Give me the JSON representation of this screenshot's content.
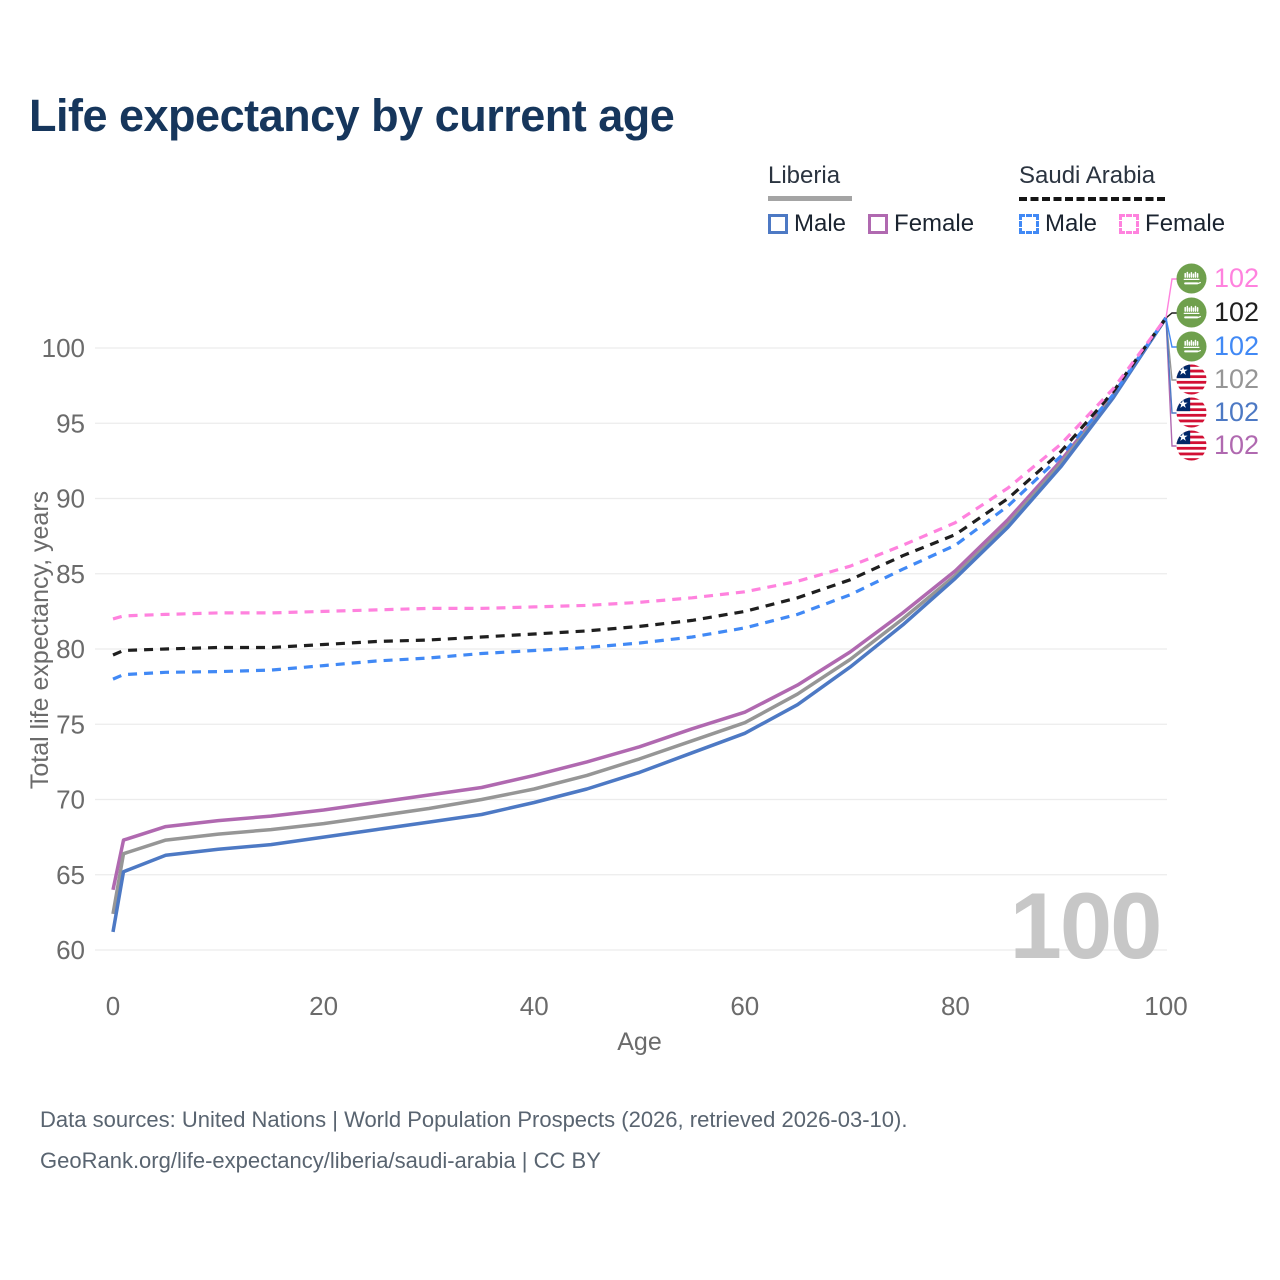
{
  "title": "Life expectancy by current age",
  "watermark": "100",
  "legend": {
    "groups": [
      {
        "name": "Liberia",
        "line_style": "solid",
        "underline_color": "#a4a4a4",
        "items": [
          {
            "label": "Male",
            "color": "#4d79c4"
          },
          {
            "label": "Female",
            "color": "#b069b0"
          }
        ]
      },
      {
        "name": "Saudi Arabia",
        "line_style": "dashed",
        "underline_color": "#151515",
        "items": [
          {
            "label": "Male",
            "color": "#4189f5"
          },
          {
            "label": "Female",
            "color": "#ff82de"
          }
        ]
      }
    ]
  },
  "footer": {
    "line1": "Data sources: United Nations | World Population Prospects (2026, retrieved 2026-03-10).",
    "line2": "GeoRank.org/life-expectancy/liberia/saudi-arabia | CC BY"
  },
  "chart_data": {
    "type": "line",
    "title": "Life expectancy by current age",
    "xlabel": "Age",
    "ylabel": "Total life expectancy, years",
    "xlim": [
      0,
      100
    ],
    "ylim": [
      58,
      103
    ],
    "x_ticks": [
      0,
      20,
      40,
      60,
      80,
      100
    ],
    "y_ticks": [
      60,
      65,
      70,
      75,
      80,
      85,
      90,
      95,
      100
    ],
    "grid": true,
    "legend_position": "top-right",
    "x": [
      0,
      1,
      5,
      10,
      15,
      20,
      25,
      30,
      35,
      40,
      45,
      50,
      55,
      60,
      65,
      70,
      75,
      80,
      85,
      90,
      95,
      100
    ],
    "series": [
      {
        "name": "Liberia Female",
        "country": "liberia",
        "sex": "female",
        "color": "#b069b0",
        "dash": false,
        "end_label": "102",
        "label_row": 5,
        "values": [
          64.0,
          67.3,
          68.2,
          68.6,
          68.9,
          69.3,
          69.8,
          70.3,
          70.8,
          71.6,
          72.5,
          73.5,
          74.7,
          75.8,
          77.6,
          79.8,
          82.4,
          85.2,
          88.6,
          92.5,
          96.9,
          102
        ]
      },
      {
        "name": "Liberia Both sexes",
        "country": "liberia",
        "sex": "total",
        "color": "#969696",
        "dash": false,
        "end_label": "102",
        "label_row": 3,
        "values": [
          62.4,
          66.4,
          67.3,
          67.7,
          68.0,
          68.4,
          68.9,
          69.4,
          70.0,
          70.7,
          71.6,
          72.7,
          73.9,
          75.1,
          77.0,
          79.3,
          82.0,
          84.9,
          88.3,
          92.3,
          96.8,
          102
        ]
      },
      {
        "name": "Liberia Male",
        "country": "liberia",
        "sex": "male",
        "color": "#4d79c4",
        "dash": false,
        "end_label": "102",
        "label_row": 4,
        "values": [
          61.2,
          65.2,
          66.3,
          66.7,
          67.0,
          67.5,
          68.0,
          68.5,
          69.0,
          69.8,
          70.7,
          71.8,
          73.1,
          74.4,
          76.3,
          78.8,
          81.6,
          84.7,
          88.1,
          92.1,
          96.7,
          102
        ]
      },
      {
        "name": "Saudi Arabia Male",
        "country": "saudi-arabia",
        "sex": "male",
        "color": "#4189f5",
        "dash": true,
        "end_label": "102",
        "label_row": 2,
        "values": [
          78.0,
          78.3,
          78.45,
          78.5,
          78.6,
          78.9,
          79.2,
          79.4,
          79.7,
          79.9,
          80.1,
          80.4,
          80.8,
          81.4,
          82.3,
          83.6,
          85.3,
          86.9,
          89.5,
          92.8,
          96.9,
          102
        ]
      },
      {
        "name": "Saudi Arabia Both sexes",
        "country": "saudi-arabia",
        "sex": "total",
        "color": "#1f1f1f",
        "dash": true,
        "end_label": "102",
        "label_row": 1,
        "values": [
          79.6,
          79.9,
          80.0,
          80.1,
          80.1,
          80.3,
          80.5,
          80.6,
          80.8,
          81.0,
          81.2,
          81.5,
          81.9,
          82.5,
          83.4,
          84.6,
          86.2,
          87.6,
          90.0,
          93.1,
          97.1,
          102
        ]
      },
      {
        "name": "Saudi Arabia Female",
        "country": "saudi-arabia",
        "sex": "female",
        "color": "#ff82de",
        "dash": true,
        "end_label": "102",
        "label_row": 0,
        "values": [
          82.0,
          82.2,
          82.3,
          82.4,
          82.4,
          82.5,
          82.6,
          82.7,
          82.7,
          82.8,
          82.9,
          83.1,
          83.4,
          83.8,
          84.5,
          85.5,
          86.9,
          88.4,
          90.7,
          93.6,
          97.3,
          102
        ]
      }
    ]
  }
}
